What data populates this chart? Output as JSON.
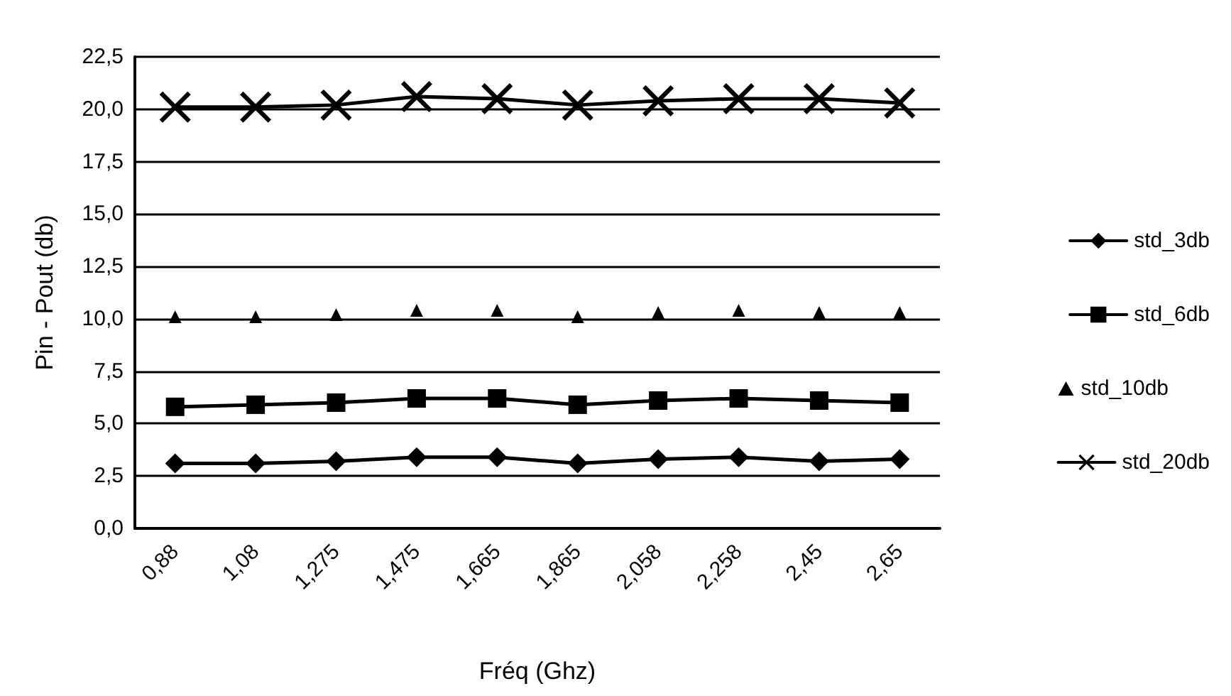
{
  "chart_data": {
    "type": "line",
    "xlabel": "Fréq (Ghz)",
    "ylabel": "Pin - Pout (db)",
    "categories": [
      "0,88",
      "1,08",
      "1,275",
      "1,475",
      "1,665",
      "1,865",
      "2,058",
      "2,258",
      "2,45",
      "2,65"
    ],
    "series": [
      {
        "name": "std_3db",
        "color": "#000000",
        "marker": "diamond",
        "values": [
          3.1,
          3.1,
          3.2,
          3.4,
          3.4,
          3.1,
          3.3,
          3.4,
          3.2,
          3.3
        ]
      },
      {
        "name": "std_6db",
        "color": "#000000",
        "marker": "square",
        "values": [
          5.8,
          5.9,
          6.0,
          6.2,
          6.2,
          5.9,
          6.1,
          6.2,
          6.1,
          6.0
        ]
      },
      {
        "name": "std_10db",
        "type": "scatter",
        "color": "#000000",
        "marker": "triangle",
        "values": [
          10.1,
          10.1,
          10.2,
          10.4,
          10.4,
          10.1,
          10.3,
          10.4,
          10.3,
          10.3
        ]
      },
      {
        "name": "std_20db",
        "color": "#000000",
        "marker": "cross",
        "values": [
          20.1,
          20.1,
          20.2,
          20.6,
          20.5,
          20.2,
          20.4,
          20.5,
          20.5,
          20.3
        ]
      }
    ],
    "ylim": [
      0,
      22.5
    ],
    "yticks": [
      {
        "value": 0,
        "label": "0,0"
      },
      {
        "value": 2.5,
        "label": "2,5"
      },
      {
        "value": 5,
        "label": "5,0"
      },
      {
        "value": 7.5,
        "label": "7,5"
      },
      {
        "value": 10,
        "label": "10,0"
      },
      {
        "value": 12.5,
        "label": "12,5"
      },
      {
        "value": 15,
        "label": "15,0"
      },
      {
        "value": 17.5,
        "label": "17,5"
      },
      {
        "value": 20,
        "label": "20,0"
      },
      {
        "value": 22.5,
        "label": "22,5"
      }
    ],
    "grid": "y",
    "legend": "right"
  }
}
